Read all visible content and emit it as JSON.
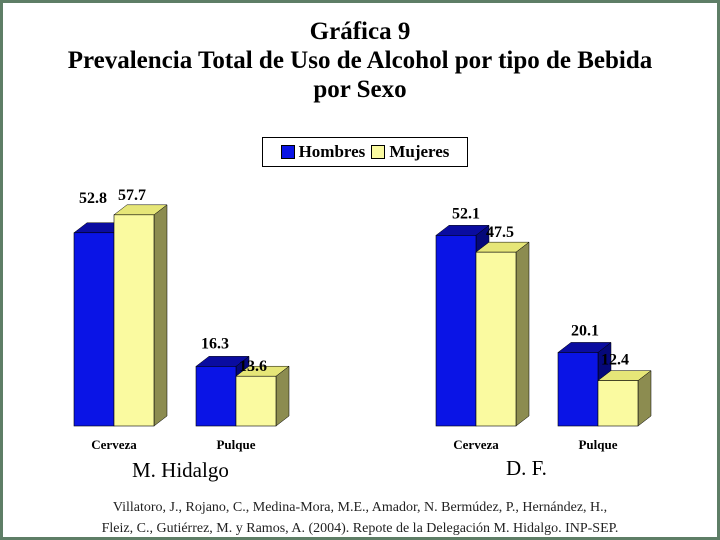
{
  "title_lines": [
    "Gráfica 9",
    "Prevalencia Total de Uso de Alcohol por tipo de Bebida",
    "por Sexo"
  ],
  "legend": [
    {
      "name": "Hombres",
      "color": "#0a14e6"
    },
    {
      "name": "Mujeres",
      "color": "#fafaa0"
    }
  ],
  "chart_data": [
    {
      "type": "bar",
      "panel": "M. Hidalgo",
      "categories": [
        "Cerveza",
        "Pulque"
      ],
      "series": [
        {
          "name": "Hombres",
          "values": [
            52.8,
            16.3
          ]
        },
        {
          "name": "Mujeres",
          "values": [
            57.7,
            13.6
          ]
        }
      ],
      "ylim": [
        0,
        60
      ],
      "grid": false,
      "legend_position": "top-center"
    },
    {
      "type": "bar",
      "panel": "D. F.",
      "categories": [
        "Cerveza",
        "Pulque"
      ],
      "series": [
        {
          "name": "Hombres",
          "values": [
            52.1,
            20.1
          ]
        },
        {
          "name": "Mujeres",
          "values": [
            47.5,
            12.4
          ]
        }
      ],
      "ylim": [
        0,
        60
      ],
      "grid": false,
      "legend_position": "top-center"
    }
  ],
  "source_lines": [
    "Villatoro, J., Rojano, C., Medina-Mora, M.E., Amador, N. Bermúdez, P., Hernández, H.,",
    "Fleiz, C., Gutiérrez, M. y Ramos, A. (2004). Repote de la Delegación M. Hidalgo. INP-SEP."
  ]
}
